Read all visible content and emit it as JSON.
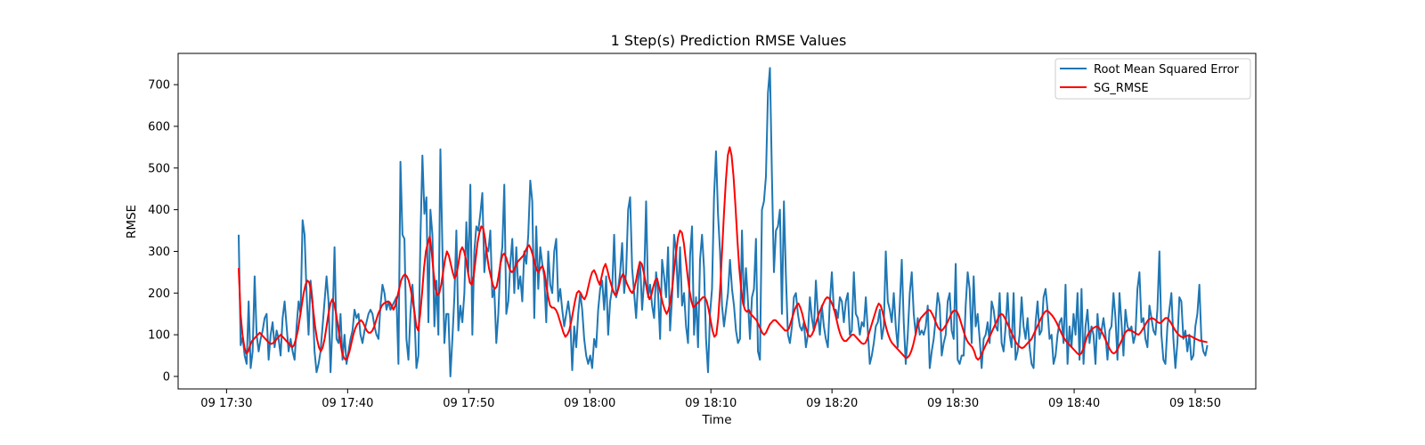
{
  "chart_data": {
    "type": "line",
    "title": "1 Step(s) Prediction RMSE Values",
    "xlabel": "Time",
    "ylabel": "RMSE",
    "ylim": [
      -30,
      775
    ],
    "xlim": [
      "09 17:26",
      "09 18:55"
    ],
    "x_ticks": [
      "09 17:30",
      "09 17:40",
      "09 17:50",
      "09 18:00",
      "09 18:10",
      "09 18:20",
      "09 18:30",
      "09 18:40",
      "09 18:50"
    ],
    "y_ticks": [
      0,
      100,
      200,
      300,
      400,
      500,
      600,
      700
    ],
    "legend_position": "top-right",
    "grid": false,
    "x_start": "09 17:31",
    "x_end": "09 18:51",
    "series": [
      {
        "name": "Root Mean Squared Error",
        "color": "#1f77b4",
        "values": [
          340,
          75,
          95,
          50,
          30,
          180,
          20,
          60,
          240,
          100,
          60,
          90,
          110,
          140,
          150,
          40,
          100,
          130,
          70,
          110,
          90,
          50,
          140,
          180,
          120,
          60,
          90,
          60,
          40,
          120,
          180,
          150,
          375,
          340,
          200,
          100,
          230,
          180,
          60,
          10,
          30,
          60,
          120,
          180,
          240,
          180,
          10,
          130,
          310,
          90,
          80,
          150,
          40,
          100,
          30,
          60,
          90,
          110,
          160,
          140,
          150,
          100,
          80,
          110,
          130,
          150,
          160,
          150,
          120,
          100,
          90,
          170,
          220,
          200,
          160,
          180,
          160,
          170,
          180,
          190,
          30,
          515,
          340,
          330,
          90,
          40,
          150,
          220,
          150,
          20,
          50,
          330,
          530,
          390,
          430,
          130,
          400,
          340,
          120,
          230,
          100,
          545,
          310,
          80,
          150,
          150,
          0,
          90,
          190,
          350,
          110,
          170,
          130,
          200,
          370,
          250,
          460,
          100,
          300,
          360,
          350,
          390,
          440,
          250,
          310,
          300,
          350,
          190,
          210,
          80,
          150,
          270,
          310,
          460,
          150,
          180,
          270,
          330,
          200,
          310,
          210,
          240,
          180,
          300,
          270,
          340,
          470,
          420,
          140,
          360,
          210,
          310,
          270,
          240,
          130,
          300,
          220,
          200,
          300,
          330,
          180,
          210,
          160,
          120,
          150,
          180,
          140,
          15,
          120,
          70,
          150,
          200,
          160,
          90,
          50,
          30,
          50,
          20,
          90,
          70,
          160,
          210,
          230,
          160,
          240,
          100,
          180,
          210,
          340,
          190,
          210,
          250,
          320,
          200,
          250,
          400,
          430,
          260,
          200,
          140,
          230,
          270,
          160,
          230,
          420,
          190,
          220,
          170,
          140,
          250,
          200,
          90,
          280,
          240,
          190,
          310,
          110,
          190,
          340,
          300,
          190,
          310,
          170,
          200,
          120,
          80,
          290,
          360,
          100,
          190,
          70,
          280,
          340,
          260,
          90,
          10,
          150,
          210,
          430,
          540,
          390,
          300,
          170,
          120,
          160,
          200,
          280,
          210,
          170,
          110,
          80,
          90,
          350,
          170,
          260,
          180,
          90,
          190,
          210,
          330,
          60,
          40,
          400,
          420,
          480,
          680,
          740,
          480,
          250,
          350,
          360,
          400,
          150,
          420,
          240,
          100,
          80,
          120,
          190,
          200,
          150,
          120,
          110,
          130,
          70,
          100,
          190,
          140,
          110,
          230,
          150,
          100,
          170,
          120,
          90,
          70,
          180,
          250,
          160,
          160,
          140,
          190,
          180,
          130,
          180,
          200,
          100,
          110,
          250,
          150,
          140,
          100,
          130,
          120,
          190,
          110,
          30,
          50,
          80,
          120,
          130,
          160,
          90,
          120,
          300,
          180,
          160,
          130,
          200,
          120,
          70,
          170,
          280,
          130,
          30,
          100,
          200,
          250,
          150,
          100,
          140,
          100,
          110,
          100,
          120,
          170,
          20,
          60,
          90,
          140,
          200,
          170,
          50,
          80,
          100,
          180,
          200,
          110,
          90,
          270,
          40,
          30,
          50,
          50,
          170,
          250,
          210,
          80,
          240,
          120,
          150,
          90,
          20,
          90,
          100,
          130,
          80,
          180,
          160,
          120,
          110,
          200,
          80,
          60,
          120,
          200,
          100,
          70,
          200,
          40,
          60,
          100,
          190,
          120,
          90,
          140,
          70,
          30,
          20,
          130,
          180,
          100,
          110,
          190,
          210,
          160,
          90,
          100,
          30,
          50,
          100,
          130,
          140,
          80,
          220,
          30,
          120,
          70,
          150,
          100,
          200,
          40,
          210,
          30,
          120,
          160,
          80,
          120,
          100,
          30,
          150,
          90,
          110,
          140,
          100,
          40,
          110,
          120,
          200,
          140,
          40,
          200,
          130,
          50,
          160,
          120,
          110,
          120,
          80,
          100,
          210,
          250,
          130,
          140,
          90,
          70,
          170,
          140,
          110,
          100,
          160,
          300,
          100,
          40,
          30,
          120,
          160,
          200,
          90,
          20,
          80,
          190,
          180,
          90,
          110,
          60,
          100,
          40,
          50,
          120,
          150,
          220,
          90,
          60,
          50,
          75
        ],
        "stroke_width": 2
      },
      {
        "name": "SG_RMSE",
        "color": "#ff0000",
        "values": [
          260,
          150,
          100,
          70,
          55,
          60,
          75,
          85,
          90,
          95,
          100,
          105,
          100,
          95,
          90,
          85,
          80,
          78,
          80,
          85,
          90,
          95,
          100,
          95,
          90,
          85,
          80,
          75,
          70,
          75,
          90,
          110,
          140,
          170,
          200,
          220,
          230,
          225,
          200,
          160,
          120,
          90,
          70,
          60,
          70,
          90,
          120,
          150,
          175,
          185,
          175,
          150,
          120,
          90,
          60,
          45,
          40,
          45,
          60,
          80,
          100,
          115,
          125,
          130,
          135,
          130,
          120,
          110,
          105,
          105,
          110,
          120,
          135,
          150,
          160,
          170,
          175,
          178,
          180,
          178,
          170,
          160,
          170,
          190,
          210,
          230,
          240,
          245,
          240,
          230,
          210,
          185,
          155,
          120,
          110,
          150,
          200,
          260,
          300,
          320,
          335,
          300,
          250,
          210,
          195,
          200,
          220,
          250,
          280,
          300,
          290,
          270,
          250,
          235,
          245,
          270,
          300,
          310,
          300,
          280,
          250,
          225,
          220,
          240,
          280,
          320,
          345,
          360,
          355,
          330,
          290,
          260,
          240,
          220,
          210,
          215,
          240,
          270,
          290,
          295,
          285,
          270,
          255,
          250,
          255,
          265,
          275,
          280,
          285,
          290,
          300,
          310,
          315,
          305,
          290,
          270,
          255,
          250,
          260,
          265,
          250,
          220,
          190,
          170,
          165,
          165,
          160,
          150,
          135,
          120,
          105,
          95,
          100,
          110,
          130,
          155,
          180,
          200,
          205,
          200,
          190,
          185,
          195,
          215,
          235,
          250,
          255,
          245,
          230,
          220,
          240,
          260,
          270,
          255,
          235,
          220,
          205,
          195,
          200,
          215,
          235,
          245,
          240,
          225,
          215,
          205,
          200,
          210,
          230,
          255,
          275,
          270,
          250,
          225,
          200,
          185,
          195,
          215,
          230,
          235,
          215,
          195,
          175,
          160,
          150,
          160,
          180,
          215,
          260,
          300,
          335,
          350,
          345,
          320,
          280,
          240,
          205,
          180,
          165,
          170,
          175,
          180,
          185,
          190,
          190,
          180,
          160,
          135,
          110,
          95,
          100,
          140,
          210,
          300,
          390,
          470,
          530,
          550,
          530,
          480,
          410,
          330,
          260,
          210,
          175,
          160,
          155,
          160,
          150,
          145,
          140,
          135,
          125,
          115,
          105,
          100,
          105,
          115,
          125,
          130,
          135,
          135,
          130,
          125,
          120,
          115,
          110,
          110,
          115,
          130,
          145,
          160,
          170,
          175,
          165,
          150,
          130,
          115,
          100,
          95,
          100,
          110,
          125,
          140,
          155,
          165,
          175,
          185,
          190,
          188,
          180,
          170,
          155,
          135,
          115,
          100,
          90,
          85,
          85,
          90,
          95,
          100,
          100,
          95,
          90,
          85,
          80,
          78,
          80,
          90,
          105,
          120,
          135,
          150,
          165,
          175,
          170,
          155,
          135,
          115,
          100,
          88,
          80,
          75,
          70,
          65,
          60,
          55,
          50,
          45,
          45,
          50,
          60,
          75,
          95,
          115,
          130,
          140,
          145,
          150,
          155,
          160,
          158,
          150,
          140,
          128,
          118,
          112,
          110,
          115,
          122,
          130,
          140,
          150,
          157,
          158,
          155,
          145,
          130,
          115,
          100,
          88,
          80,
          75,
          70,
          60,
          45,
          40,
          45,
          55,
          65,
          75,
          85,
          95,
          105,
          115,
          125,
          135,
          145,
          150,
          148,
          140,
          130,
          120,
          110,
          100,
          90,
          80,
          75,
          70,
          68,
          70,
          75,
          80,
          85,
          90,
          100,
          110,
          120,
          130,
          140,
          148,
          155,
          158,
          155,
          150,
          145,
          138,
          130,
          120,
          110,
          100,
          92,
          85,
          80,
          75,
          70,
          65,
          60,
          55,
          52,
          55,
          65,
          80,
          95,
          105,
          110,
          115,
          118,
          120,
          118,
          112,
          105,
          95,
          85,
          75,
          65,
          58,
          55,
          58,
          65,
          75,
          85,
          95,
          105,
          110,
          112,
          110,
          108,
          105,
          102,
          100,
          105,
          112,
          120,
          128,
          135,
          138,
          140,
          138,
          135,
          130,
          128,
          130,
          135,
          140,
          140,
          135,
          128,
          120,
          112,
          105,
          100,
          96,
          94,
          95,
          97,
          98,
          97,
          95,
          92,
          90,
          88,
          86,
          85,
          84,
          83,
          82
        ],
        "stroke_width": 2
      }
    ]
  }
}
